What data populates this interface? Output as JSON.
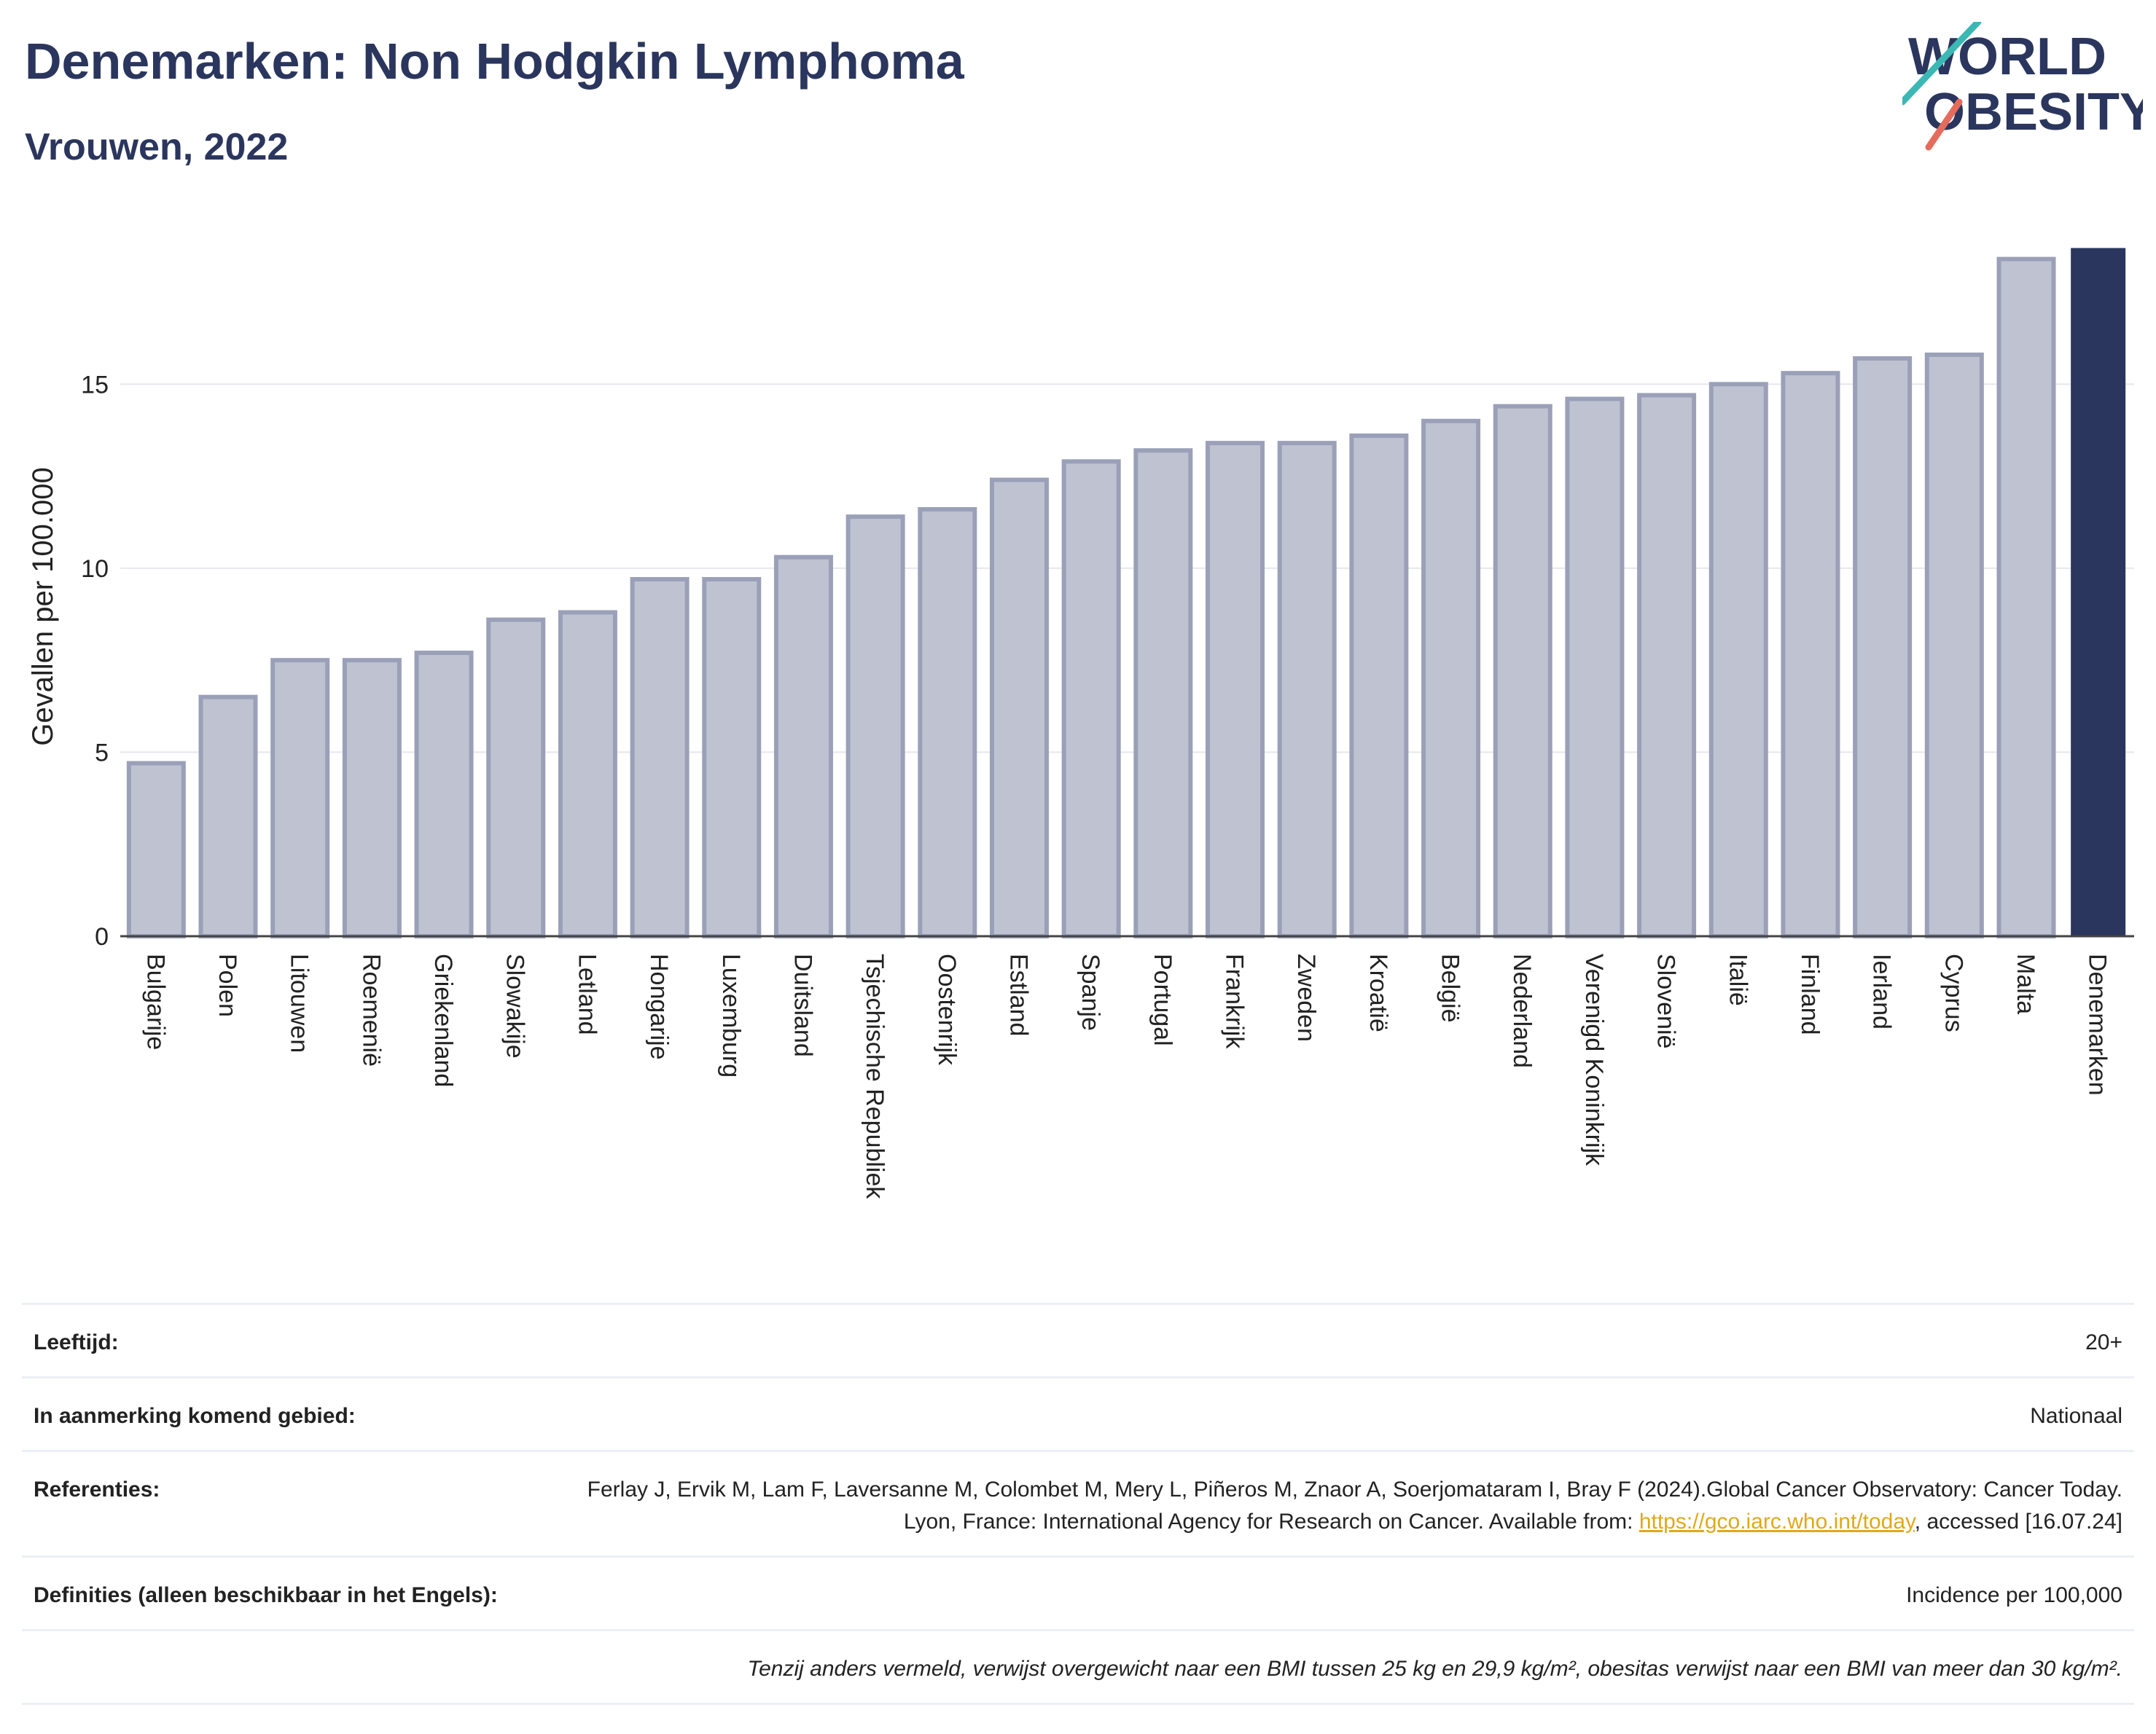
{
  "header": {
    "title": "Denemarken: Non Hodgkin Lymphoma",
    "subtitle": "Vrouwen, 2022"
  },
  "logo": {
    "line1": "WORLD",
    "line2": "OBESITY",
    "colors": {
      "text": "#2b365e",
      "slash_top": "#3bb8b4",
      "slash_bottom": "#e56b5d"
    }
  },
  "chart_data": {
    "type": "bar",
    "ylabel": "Gevallen per 100.000",
    "yticks": [
      0,
      5,
      10,
      15
    ],
    "ylim": [
      0,
      19.5
    ],
    "grid": true,
    "categories": [
      "Bulgarije",
      "Polen",
      "Litouwen",
      "Roemenië",
      "Griekenland",
      "Slowakije",
      "Letland",
      "Hongarije",
      "Luxemburg",
      "Duitsland",
      "Tsjechische Republiek",
      "Oostenrijk",
      "Estland",
      "Spanje",
      "Portugal",
      "Frankrijk",
      "Zweden",
      "Kroatië",
      "België",
      "Nederland",
      "Verenigd Koninkrijk",
      "Slovenië",
      "Italië",
      "Finland",
      "Ierland",
      "Cyprus",
      "Malta",
      "Denemarken"
    ],
    "values": [
      4.7,
      6.5,
      7.5,
      7.5,
      7.7,
      8.6,
      8.8,
      9.7,
      9.7,
      10.3,
      11.4,
      11.6,
      12.4,
      12.9,
      13.2,
      13.4,
      13.4,
      13.6,
      14.0,
      14.4,
      14.6,
      14.7,
      15.0,
      15.3,
      15.7,
      15.8,
      18.4,
      18.7
    ],
    "highlight": "Denemarken",
    "colors": {
      "bar": "#bfc3d1",
      "bar_border": "#9aa0b8",
      "highlight": "#2b365e",
      "grid": "#e6e8ee"
    }
  },
  "info": {
    "rows": [
      {
        "label": "Leeftijd:",
        "value": "20+"
      },
      {
        "label": "In aanmerking komend gebied:",
        "value": "Nationaal"
      },
      {
        "label": "Referenties:",
        "value_pre": "Ferlay J, Ervik M, Lam F, Laversanne M, Colombet M, Mery L, Piñeros M, Znaor A, Soerjomataram I, Bray F (2024).Global Cancer Observatory: Cancer Today. Lyon, France: International Agency for Research on Cancer. Available from: ",
        "link": "https://gco.iarc.who.int/today",
        "value_post": ", accessed [16.07.24]"
      },
      {
        "label": "Definities (alleen beschikbaar in het Engels):",
        "value": "Incidence per 100,000"
      }
    ],
    "note": "Tenzij anders vermeld, verwijst overgewicht naar een BMI tussen 25 kg en 29,9 kg/m², obesitas verwijst naar een BMI van meer dan 30 kg/m²."
  }
}
